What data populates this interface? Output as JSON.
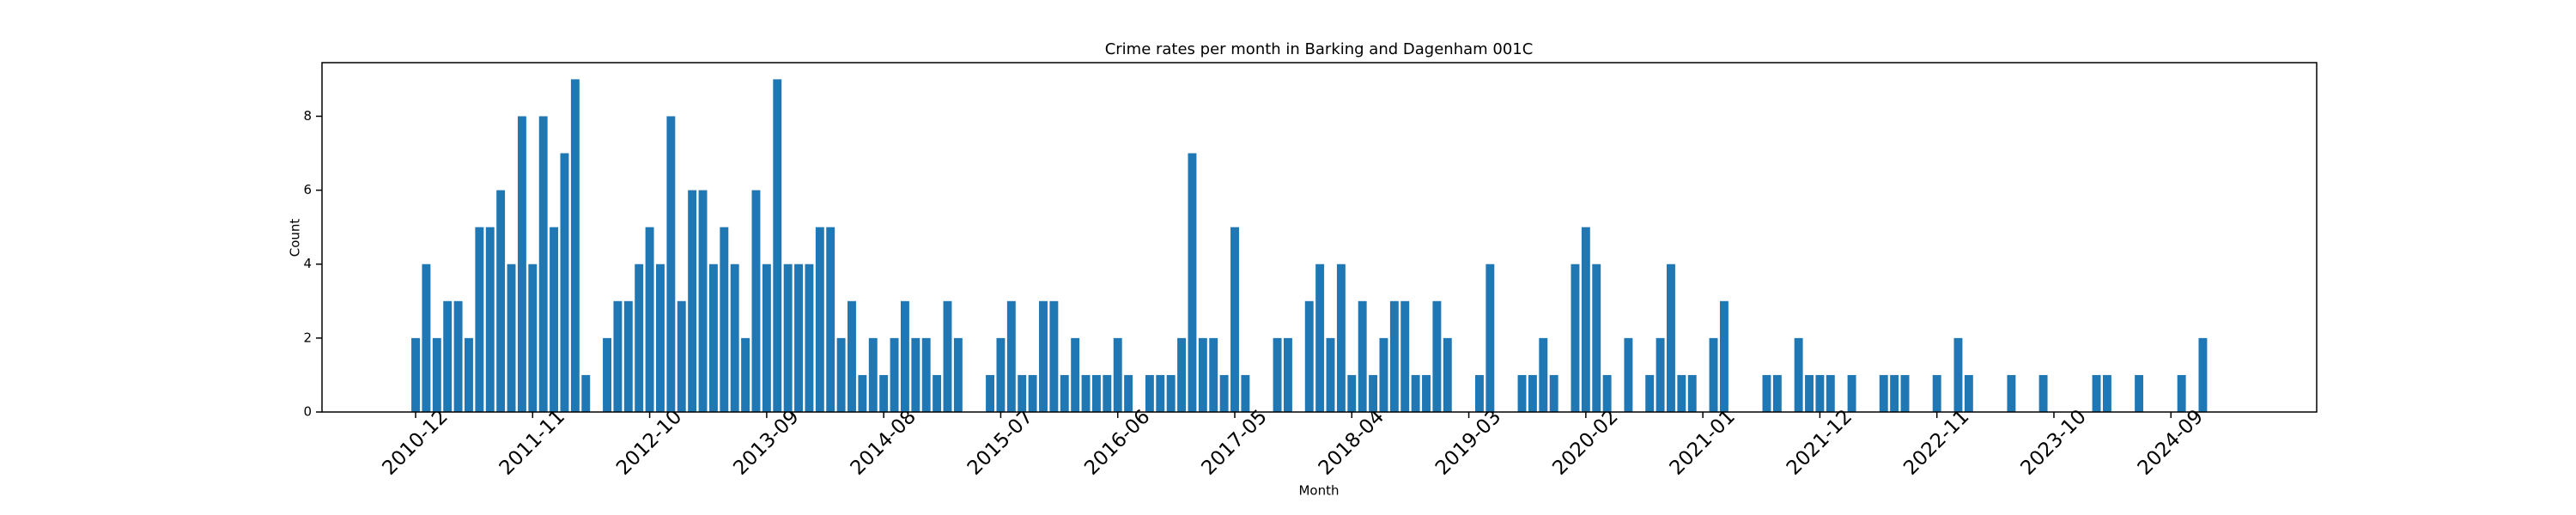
{
  "chart_data": {
    "type": "bar",
    "title": "Crime rates per month in Barking and Dagenham 001C",
    "x_label": "Month",
    "y_label": "Count",
    "color": "#1f77b4",
    "categories": [
      "2010-12",
      null,
      null,
      null,
      null,
      null,
      null,
      null,
      null,
      null,
      null,
      "2011-11",
      null,
      null,
      null,
      null,
      null,
      null,
      null,
      null,
      null,
      null,
      "2012-10",
      null,
      null,
      null,
      null,
      null,
      null,
      null,
      null,
      null,
      null,
      "2013-09",
      null,
      null,
      null,
      null,
      null,
      null,
      null,
      null,
      null,
      null,
      "2014-08",
      null,
      null,
      null,
      null,
      null,
      null,
      null,
      null,
      null,
      null,
      "2015-07",
      null,
      null,
      null,
      null,
      null,
      null,
      null,
      null,
      null,
      null,
      "2016-06",
      null,
      null,
      null,
      null,
      null,
      null,
      null,
      null,
      null,
      null,
      "2017-05",
      null,
      null,
      null,
      null,
      null,
      null,
      null,
      null,
      null,
      null,
      "2018-04",
      null,
      null,
      null,
      null,
      null,
      null,
      null,
      null,
      null,
      null,
      "2019-03",
      null,
      null,
      null,
      null,
      null,
      null,
      null,
      null,
      null,
      null,
      "2020-02",
      null,
      null,
      null,
      null,
      null,
      null,
      null,
      null,
      null,
      null,
      "2021-01",
      null,
      null,
      null,
      null,
      null,
      null,
      null,
      null,
      null,
      null,
      "2021-12",
      null,
      null,
      null,
      null,
      null,
      null,
      null,
      null,
      null,
      null,
      "2022-11",
      null,
      null,
      null,
      null,
      null,
      null,
      null,
      null,
      null,
      null,
      "2023-10",
      null,
      null,
      null,
      null,
      null,
      null,
      null,
      null,
      null,
      null,
      "2024-09",
      null,
      null,
      null
    ],
    "values": [
      2,
      4,
      2,
      3,
      3,
      2,
      5,
      5,
      6,
      4,
      8,
      4,
      8,
      5,
      7,
      9,
      1,
      0,
      2,
      3,
      3,
      4,
      5,
      4,
      8,
      3,
      6,
      6,
      4,
      5,
      4,
      2,
      6,
      4,
      9,
      4,
      4,
      4,
      5,
      5,
      2,
      3,
      1,
      2,
      1,
      2,
      3,
      2,
      2,
      1,
      3,
      2,
      0,
      0,
      1,
      2,
      3,
      1,
      1,
      3,
      3,
      1,
      2,
      1,
      1,
      1,
      2,
      1,
      0,
      1,
      1,
      1,
      2,
      7,
      2,
      2,
      1,
      5,
      1,
      0,
      0,
      2,
      2,
      0,
      3,
      4,
      2,
      4,
      1,
      3,
      1,
      2,
      3,
      3,
      1,
      1,
      3,
      2,
      0,
      0,
      1,
      4,
      0,
      0,
      1,
      1,
      2,
      1,
      0,
      4,
      5,
      4,
      1,
      0,
      2,
      0,
      1,
      2,
      4,
      1,
      1,
      0,
      2,
      3,
      0,
      0,
      0,
      1,
      1,
      0,
      2,
      1,
      1,
      1,
      0,
      1,
      0,
      0,
      1,
      1,
      1,
      0,
      0,
      1,
      0,
      2,
      1,
      0,
      0,
      0,
      1,
      0,
      0,
      1,
      0,
      0,
      0,
      0,
      1,
      1,
      0,
      0,
      1,
      0,
      0,
      0,
      1,
      0,
      2
    ],
    "ylim": [
      0,
      9.45
    ],
    "yticks": [
      0,
      2,
      4,
      6,
      8
    ]
  }
}
